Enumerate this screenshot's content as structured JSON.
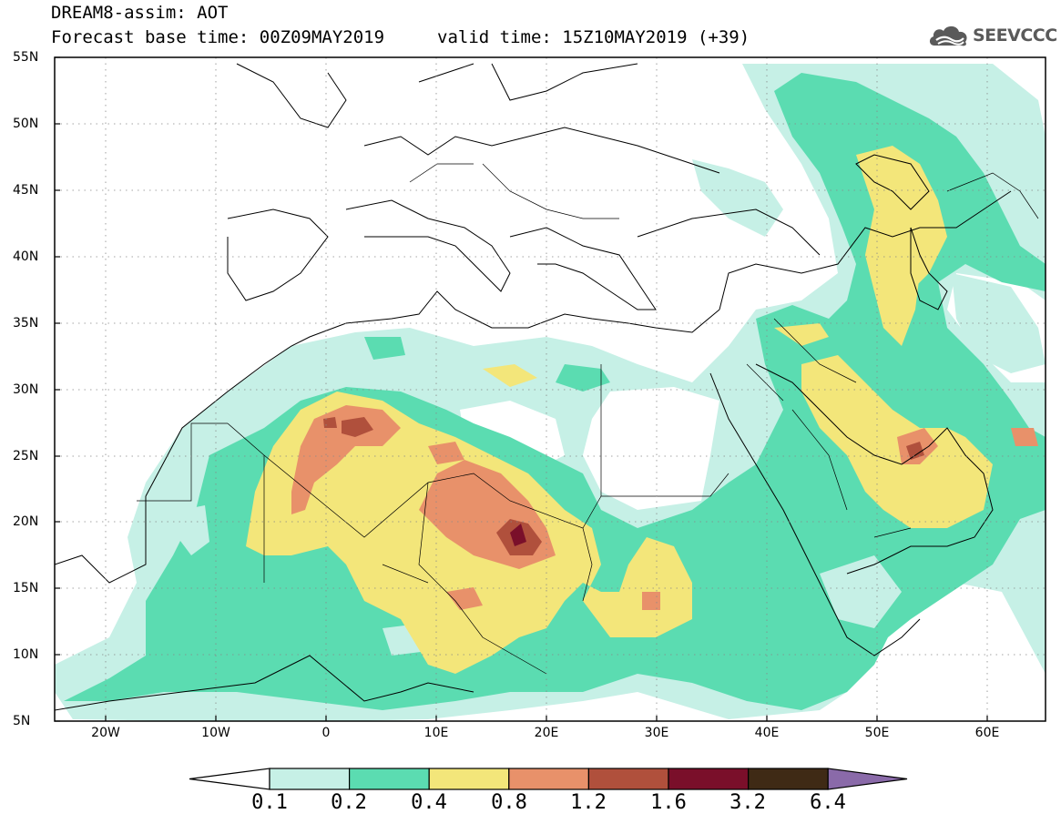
{
  "header": {
    "title_line1": "DREAM8-assim: AOT",
    "base_time": "Forecast base time: 00Z09MAY2019",
    "valid_time": "valid time: 15Z10MAY2019 (+39)",
    "logo_text": "SEEVCCC",
    "logo_icon": "cloud-icon"
  },
  "map": {
    "lat_ticks": [
      "55N",
      "50N",
      "45N",
      "40N",
      "35N",
      "30N",
      "25N",
      "20N",
      "15N",
      "10N",
      "5N"
    ],
    "lon_ticks": [
      "20W",
      "10W",
      "0",
      "10E",
      "20E",
      "30E",
      "40E",
      "50E",
      "60E"
    ],
    "extent": {
      "lon": [
        -25,
        65
      ],
      "lat": [
        5,
        55
      ]
    },
    "gridlines": "dotted"
  },
  "legend": {
    "labels": [
      "0.1",
      "0.2",
      "0.4",
      "0.8",
      "1.2",
      "1.6",
      "3.2",
      "6.4"
    ],
    "colors": [
      "#ffffff",
      "#c6f0e6",
      "#5bdcb1",
      "#f3e67a",
      "#e8916a",
      "#b0503c",
      "#7a0f2a",
      "#3f2a15",
      "#8a6aa9"
    ]
  }
}
